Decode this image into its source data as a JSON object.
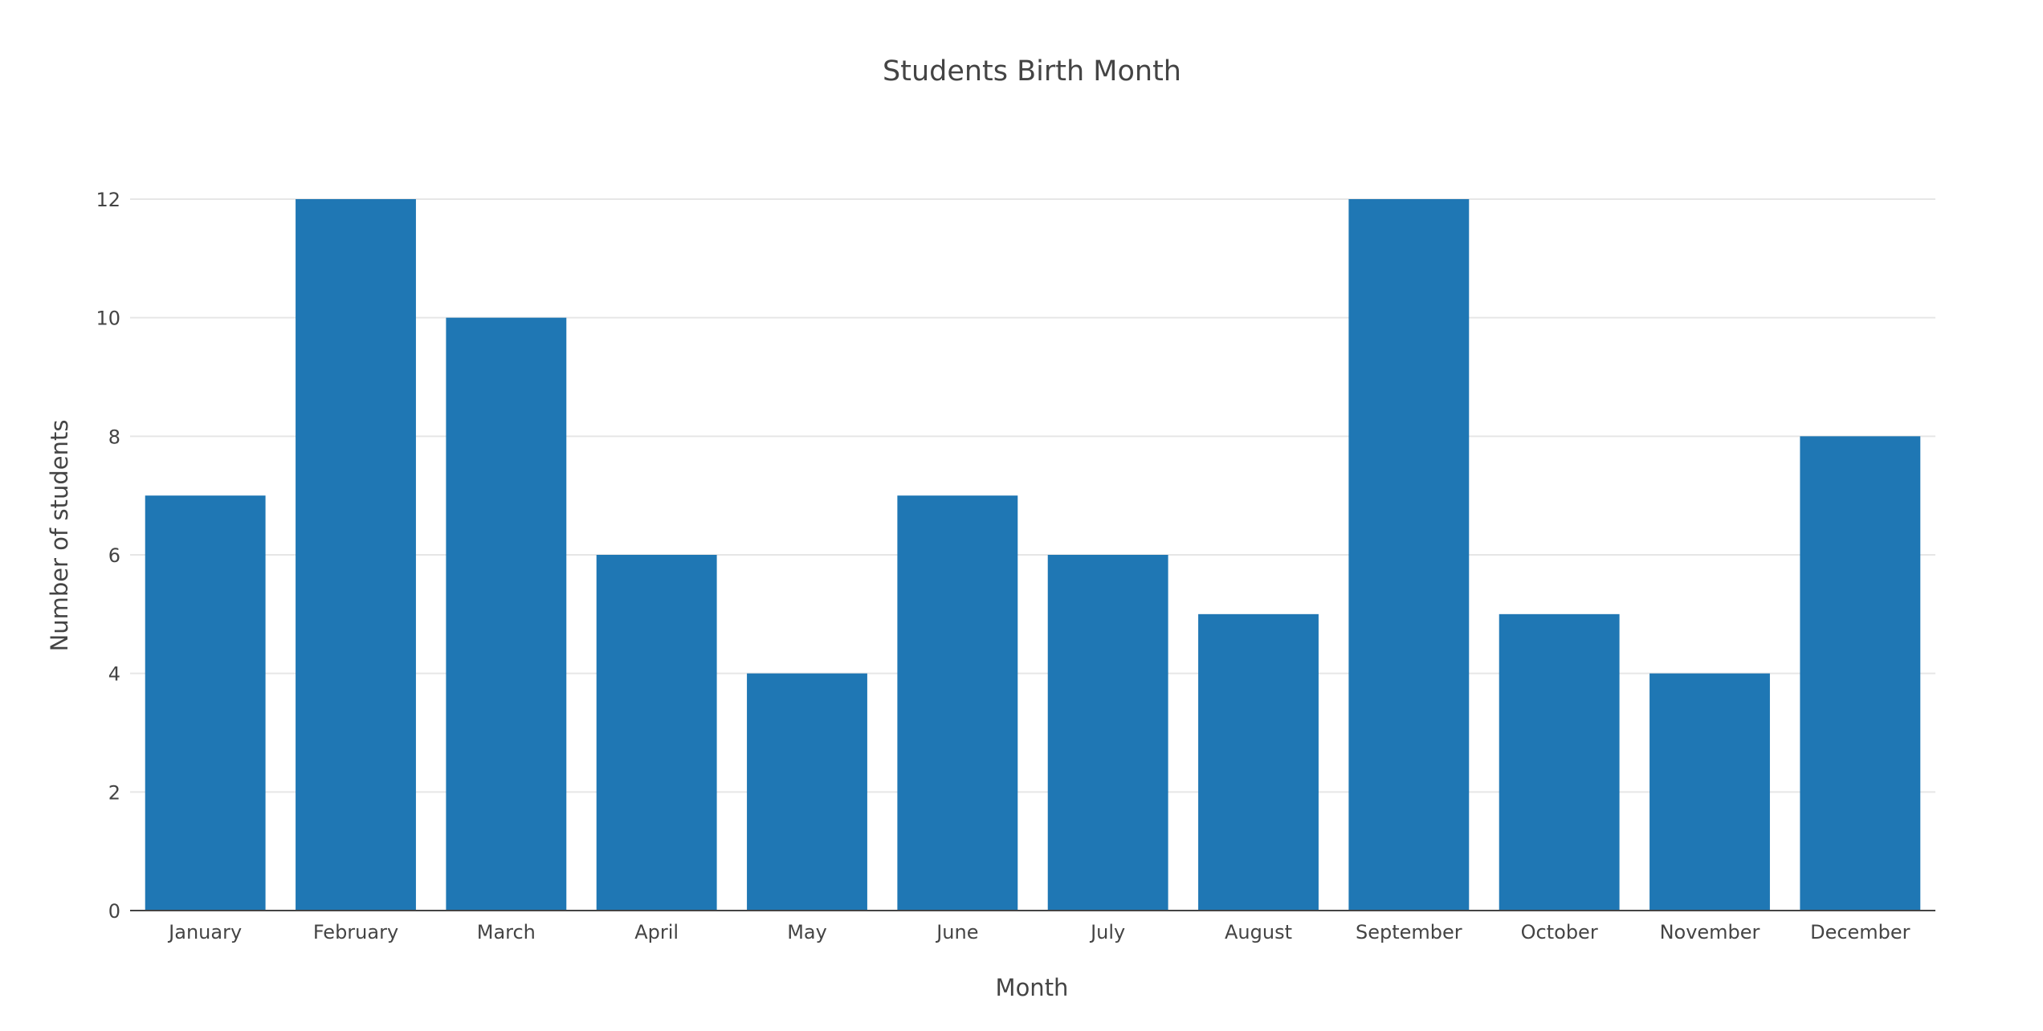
{
  "chart_data": {
    "type": "bar",
    "title": "Students Birth Month",
    "xlabel": "Month",
    "ylabel": "Number of students",
    "categories": [
      "January",
      "February",
      "March",
      "April",
      "May",
      "June",
      "July",
      "August",
      "September",
      "October",
      "November",
      "December"
    ],
    "series": [
      {
        "values": [
          7,
          12,
          10,
          6,
          4,
          7,
          6,
          5,
          12,
          5,
          4,
          8
        ],
        "color": "#1f77b4"
      }
    ],
    "ylim": [
      0,
      12
    ],
    "yticks": [
      "0",
      "2",
      "4",
      "6",
      "8",
      "10",
      "12"
    ],
    "grid": true,
    "legend": "none"
  }
}
